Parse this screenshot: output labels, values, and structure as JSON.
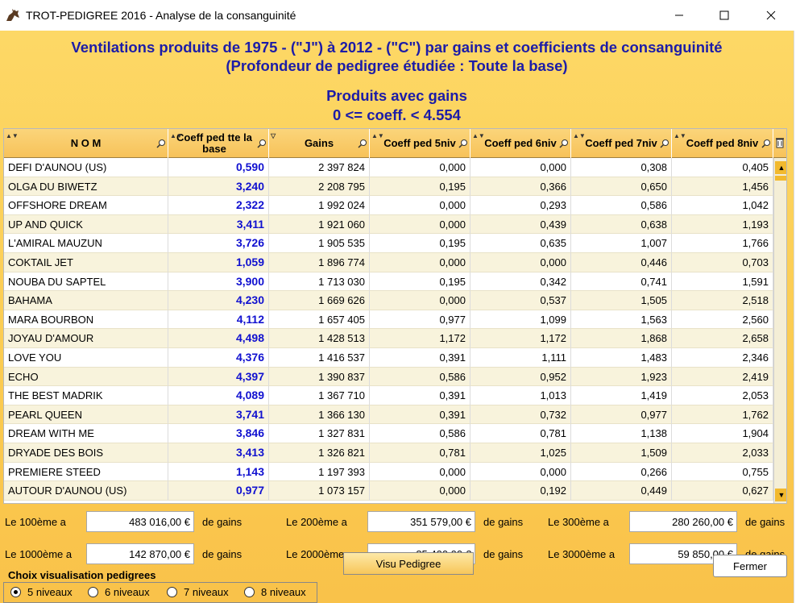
{
  "window": {
    "title": "TROT-PEDIGREE 2016  -  Analyse de la consanguinité",
    "minimize_icon": "minimize-icon",
    "maximize_icon": "maximize-icon",
    "close_icon": "close-icon"
  },
  "header": {
    "line1": "Ventilations produits  de 1975 - (\"J\") à 2012 - (\"C\") par gains et  coefficients de consanguinité",
    "line2": "(Profondeur de pedigree étudiée : Toute la base)",
    "line3": "Produits avec gains",
    "line4": "0 <= coeff. < 4.554"
  },
  "grid": {
    "columns": [
      "N O M",
      "Coeff ped tte la base",
      "Gains",
      "Coeff ped 5niv",
      "Coeff ped 6niv",
      "Coeff ped 7niv",
      "Coeff ped 8niv"
    ],
    "rows": [
      [
        "DEFI D'AUNOU (US)",
        "0,590",
        "2 397 824",
        "0,000",
        "0,000",
        "0,308",
        "0,405"
      ],
      [
        "OLGA DU BIWETZ",
        "3,240",
        "2 208 795",
        "0,195",
        "0,366",
        "0,650",
        "1,456"
      ],
      [
        "OFFSHORE DREAM",
        "2,322",
        "1 992 024",
        "0,000",
        "0,293",
        "0,586",
        "1,042"
      ],
      [
        "UP AND QUICK",
        "3,411",
        "1 921 060",
        "0,000",
        "0,439",
        "0,638",
        "1,193"
      ],
      [
        "L'AMIRAL MAUZUN",
        "3,726",
        "1 905 535",
        "0,195",
        "0,635",
        "1,007",
        "1,766"
      ],
      [
        "COKTAIL JET",
        "1,059",
        "1 896 774",
        "0,000",
        "0,000",
        "0,446",
        "0,703"
      ],
      [
        "NOUBA DU SAPTEL",
        "3,900",
        "1 713 030",
        "0,195",
        "0,342",
        "0,741",
        "1,591"
      ],
      [
        "BAHAMA",
        "4,230",
        "1 669 626",
        "0,000",
        "0,537",
        "1,505",
        "2,518"
      ],
      [
        "MARA BOURBON",
        "4,112",
        "1 657 405",
        "0,977",
        "1,099",
        "1,563",
        "2,560"
      ],
      [
        "JOYAU D'AMOUR",
        "4,498",
        "1 428 513",
        "1,172",
        "1,172",
        "1,868",
        "2,658"
      ],
      [
        "LOVE YOU",
        "4,376",
        "1 416 537",
        "0,391",
        "1,111",
        "1,483",
        "2,346"
      ],
      [
        "ECHO",
        "4,397",
        "1 390 837",
        "0,586",
        "0,952",
        "1,923",
        "2,419"
      ],
      [
        "THE BEST MADRIK",
        "4,089",
        "1 367 710",
        "0,391",
        "1,013",
        "1,419",
        "2,053"
      ],
      [
        "PEARL QUEEN",
        "3,741",
        "1 366 130",
        "0,391",
        "0,732",
        "0,977",
        "1,762"
      ],
      [
        "DREAM WITH ME",
        "3,846",
        "1 327 831",
        "0,586",
        "0,781",
        "1,138",
        "1,904"
      ],
      [
        "DRYADE DES BOIS",
        "3,413",
        "1 326 821",
        "0,781",
        "1,025",
        "1,509",
        "2,033"
      ],
      [
        "PREMIERE STEED",
        "1,143",
        "1 197 393",
        "0,000",
        "0,000",
        "0,266",
        "0,755"
      ],
      [
        "AUTOUR D'AUNOU (US)",
        "0,977",
        "1 073 157",
        "0,000",
        "0,192",
        "0,449",
        "0,627"
      ]
    ]
  },
  "ranks": {
    "r100_label": "Le 100ème a",
    "r100_value": "483 016,00 €",
    "r200_label": "Le 200ème a",
    "r200_value": "351 579,00 €",
    "r300_label": "Le 300ème a",
    "r300_value": "280 260,00 €",
    "r1000_label": "Le 1000ème a",
    "r1000_value": "142 870,00 €",
    "r2000_label": "Le 2000ème a",
    "r2000_value": "85 400,00 €",
    "r3000_label": "Le 3000ème a",
    "r3000_value": "59 850,00 €",
    "suffix": "de gains"
  },
  "visualisation": {
    "title": "Choix visualisation pedigrees",
    "options": [
      "5 niveaux",
      "6 niveaux",
      "7 niveaux",
      "8 niveaux"
    ],
    "selected": "5 niveaux"
  },
  "buttons": {
    "visu": "Visu Pedigree",
    "close": "Fermer"
  },
  "colors": {
    "background": "#fbcb50",
    "header_text": "#1c1ca8",
    "coeff_text": "#1010d0"
  }
}
